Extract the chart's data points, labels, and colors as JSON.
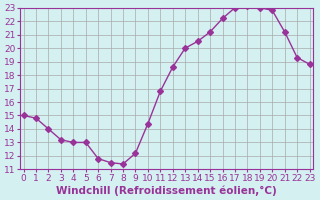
{
  "x": [
    0,
    1,
    2,
    3,
    4,
    5,
    6,
    7,
    8,
    9,
    10,
    11,
    12,
    13,
    14,
    15,
    16,
    17,
    18,
    19,
    20,
    21,
    22,
    23
  ],
  "y": [
    15.0,
    14.8,
    14.0,
    13.2,
    13.0,
    13.0,
    11.8,
    11.5,
    11.4,
    12.2,
    14.4,
    16.8,
    18.6,
    20.0,
    20.5,
    21.2,
    22.2,
    23.0,
    23.1,
    23.0,
    22.8,
    21.2,
    19.3,
    18.8
  ],
  "xlim": [
    0,
    23
  ],
  "ylim": [
    11,
    23
  ],
  "yticks": [
    11,
    12,
    13,
    14,
    15,
    16,
    17,
    18,
    19,
    20,
    21,
    22,
    23
  ],
  "xticks": [
    0,
    1,
    2,
    3,
    4,
    5,
    6,
    7,
    8,
    9,
    10,
    11,
    12,
    13,
    14,
    15,
    16,
    17,
    18,
    19,
    20,
    21,
    22,
    23
  ],
  "xlabel": "Windchill (Refroidissement éolien,°C)",
  "line_color": "#993399",
  "marker": "D",
  "marker_size": 3,
  "bg_color": "#d4f0f0",
  "grid_color": "#aaaaaa",
  "tick_color": "#993399",
  "label_color": "#993399",
  "tick_fontsize": 6.5,
  "xlabel_fontsize": 7.5
}
